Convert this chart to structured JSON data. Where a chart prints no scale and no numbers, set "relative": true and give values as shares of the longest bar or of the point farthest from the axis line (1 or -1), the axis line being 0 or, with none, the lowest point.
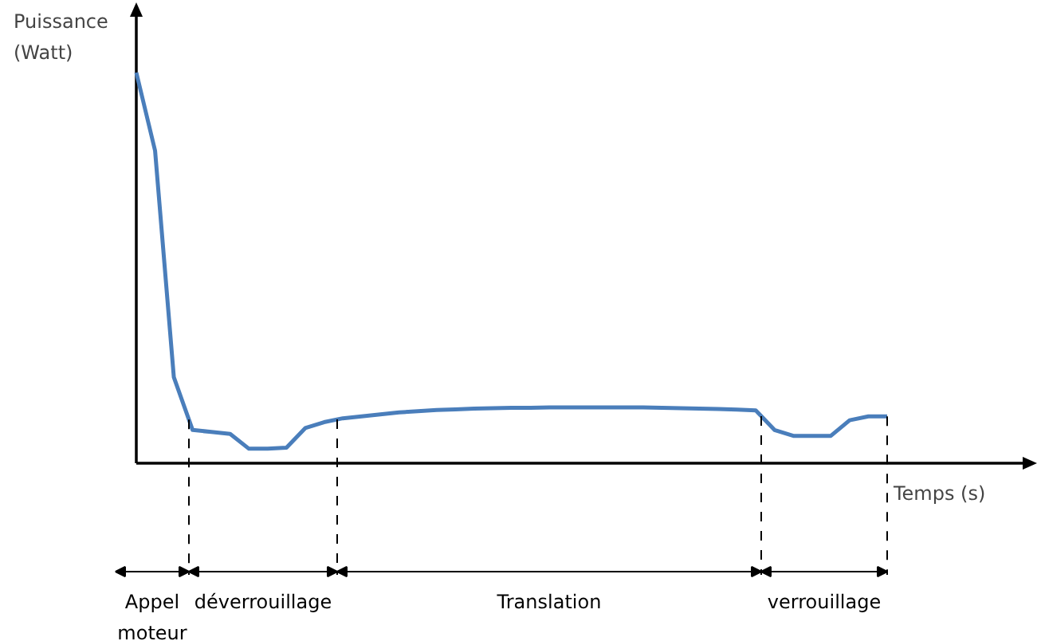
{
  "chart_data": {
    "type": "line",
    "xlabel": "Temps (s)",
    "ylabel": "Puissance (Watt)",
    "line_style": "solid",
    "annotations": [
      "Appel moteur",
      "déverrouillage",
      "Translation",
      "verrouillage"
    ],
    "categories": [
      null,
      null,
      null,
      null,
      null,
      null,
      null,
      null,
      null,
      null,
      null,
      null,
      null,
      null,
      null,
      null,
      null,
      null,
      null,
      null,
      null,
      null,
      null,
      null,
      null,
      null,
      null,
      null,
      null,
      null,
      null,
      null,
      null,
      null,
      null,
      null,
      null,
      null,
      null,
      null,
      null
    ],
    "series": [
      {
        "color": "#4a7ebb",
        "values": [
          1.0,
          0.8,
          0.22,
          0.085,
          0.08,
          0.075,
          0.037,
          0.037,
          0.04,
          0.09,
          0.105,
          0.115,
          0.12,
          0.125,
          0.13,
          0.133,
          0.136,
          0.138,
          0.14,
          0.141,
          0.142,
          0.142,
          0.143,
          0.143,
          0.143,
          0.143,
          0.143,
          0.143,
          0.142,
          0.141,
          0.14,
          0.139,
          0.137,
          0.135,
          0.085,
          0.07,
          0.07,
          0.07,
          0.11,
          0.12,
          0.12
        ]
      }
    ],
    "relative": true
  }
}
